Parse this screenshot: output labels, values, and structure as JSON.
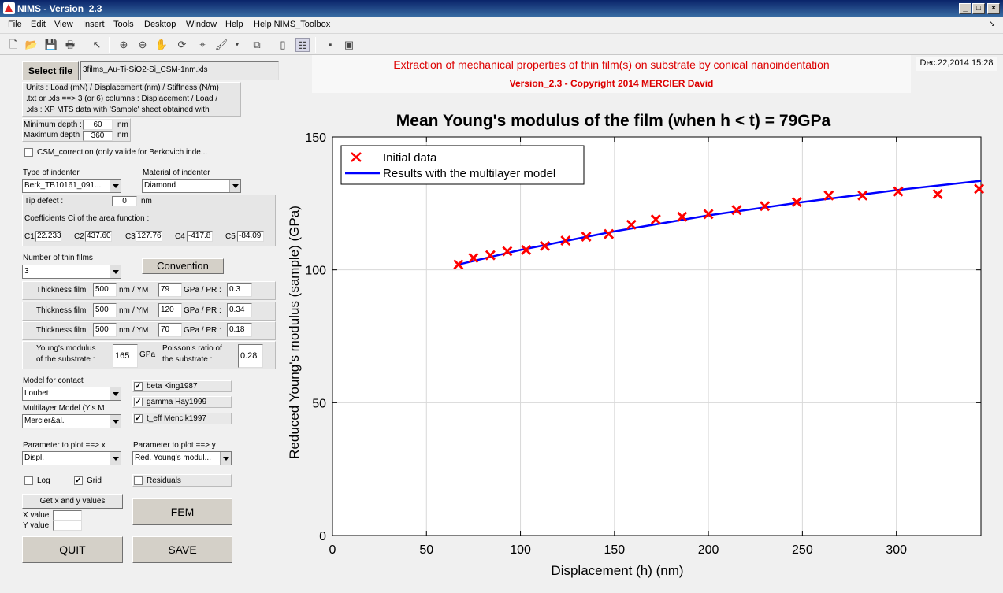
{
  "window": {
    "title": "NIMS - Version_2.3"
  },
  "menu": [
    "File",
    "Edit",
    "View",
    "Insert",
    "Tools",
    "Desktop",
    "Window",
    "Help",
    "Help NIMS_Toolbox"
  ],
  "toolbar_icons": [
    "new-file-icon",
    "open-folder-icon",
    "save-icon",
    "print-icon",
    "pointer-icon",
    "zoom-in-icon",
    "zoom-out-icon",
    "pan-hand-icon",
    "rotate-3d-icon",
    "data-cursor-icon",
    "brush-icon",
    "link-icon",
    "colorbar-icon",
    "legend-icon",
    "hide-plot-tools-icon",
    "show-plot-tools-icon"
  ],
  "file": {
    "select_label": "Select file",
    "filename": "3films_Au-Ti-SiO2-Si_CSM-1nm.xls",
    "help_lines": [
      "Units : Load (mN) / Displacement (nm) / Stiffness (N/m)",
      ".txt or .xls ==> 3 (or 6) columns : Displacement / Load /",
      ".xls : XP MTS data with 'Sample' sheet obtained with"
    ]
  },
  "depth": {
    "min_label": "Minimum depth :",
    "min_value": "60",
    "min_unit": "nm",
    "max_label": "Maximum depth",
    "max_value": "360",
    "max_unit": "nm"
  },
  "csm": {
    "label": "CSM_correction (only valide for Berkovich inde...",
    "checked": false
  },
  "indenter": {
    "type_label": "Type of indenter",
    "type_value": "Berk_TB10161_091...",
    "material_label": "Material of indenter",
    "material_value": "Diamond",
    "tip_label": "Tip defect :",
    "tip_value": "0",
    "tip_unit": "nm",
    "coeff_label": "Coefficients Ci of the area function :",
    "coeffs": [
      {
        "label": "C1",
        "value": "22.233"
      },
      {
        "label": "C2",
        "value": "437.60"
      },
      {
        "label": "C3",
        "value": "127.76"
      },
      {
        "label": "C4",
        "value": "-417.8"
      },
      {
        "label": "C5",
        "value": "-84.09"
      }
    ]
  },
  "films": {
    "count_label": "Number of thin films",
    "count_value": "3",
    "convention_label": "Convention",
    "row_label": "Thickness film",
    "nm": "nm",
    "ym": "/  YM",
    "gpa": "GPa  /  PR :",
    "rows": [
      {
        "thickness": "500",
        "ym": "79",
        "pr": "0.3"
      },
      {
        "thickness": "500",
        "ym": "120",
        "pr": "0.34"
      },
      {
        "thickness": "500",
        "ym": "70",
        "pr": "0.18"
      }
    ],
    "substrate_ym_label1": "Young's modulus",
    "substrate_ym_label2": "of the substrate :",
    "substrate_ym": "165",
    "substrate_ym_unit": "GPa",
    "substrate_pr_label1": "Poisson's ratio of",
    "substrate_pr_label2": "the substrate :",
    "substrate_pr": "0.28"
  },
  "model": {
    "contact_label": "Model for contact",
    "contact_value": "Loubet",
    "multilayer_label": "Multilayer Model (Y's M",
    "multilayer_value": "Mercier&al.",
    "options": [
      {
        "label": "beta King1987",
        "checked": true
      },
      {
        "label": "gamma Hay1999",
        "checked": true
      },
      {
        "label": "t_eff Mencik1997",
        "checked": true
      }
    ]
  },
  "plotparams": {
    "x_label": "Parameter to plot ==> x",
    "x_value": "Displ.",
    "y_label": "Parameter to plot ==> y",
    "y_value": "Red. Young's modul...",
    "log_label": "Log",
    "log_checked": false,
    "grid_label": "Grid",
    "grid_checked": true,
    "residuals_label": "Residuals",
    "residuals_checked": false,
    "getxy_label": "Get x and y values",
    "xval_label": "X value",
    "yval_label": "Y value",
    "fem_label": "FEM",
    "quit_label": "QUIT",
    "save_label": "SAVE"
  },
  "header": {
    "title": "Extraction of mechanical properties of thin film(s) on substrate by conical nanoindentation",
    "subtitle": "Version_2.3 - Copyright 2014 MERCIER David",
    "date": "Dec.22,2014 15:28"
  },
  "chart_data": {
    "type": "scatter",
    "title": "Mean Young's modulus of the film (when h < t) = 79GPa",
    "xlabel": "Displacement (h) (nm)",
    "ylabel": "Reduced Young's modulus (sample) (GPa)",
    "xlim": [
      0,
      345
    ],
    "ylim": [
      0,
      150
    ],
    "xticks": [
      0,
      50,
      100,
      150,
      200,
      250,
      300
    ],
    "yticks": [
      0,
      50,
      100,
      150
    ],
    "grid": true,
    "legend_position": "top-left",
    "series": [
      {
        "name": "Initial data",
        "marker": "x",
        "color": "#ff0000",
        "x": [
          67,
          75,
          84,
          93,
          103,
          113,
          124,
          135,
          147,
          159,
          172,
          186,
          200,
          215,
          230,
          247,
          264,
          282,
          301,
          322,
          344
        ],
        "y": [
          102,
          104.5,
          105.5,
          107,
          107.5,
          109,
          111,
          112.5,
          113.5,
          117,
          119,
          120,
          121,
          122.5,
          124,
          125.5,
          128,
          128,
          129.5,
          128.5,
          130.5
        ]
      },
      {
        "name": "Results with the multilayer model",
        "marker": "line",
        "color": "#0000ff",
        "x": [
          67,
          100,
          150,
          200,
          250,
          300,
          345
        ],
        "y": [
          102,
          107.5,
          114.5,
          120.5,
          125.5,
          130,
          133.5
        ]
      }
    ]
  }
}
